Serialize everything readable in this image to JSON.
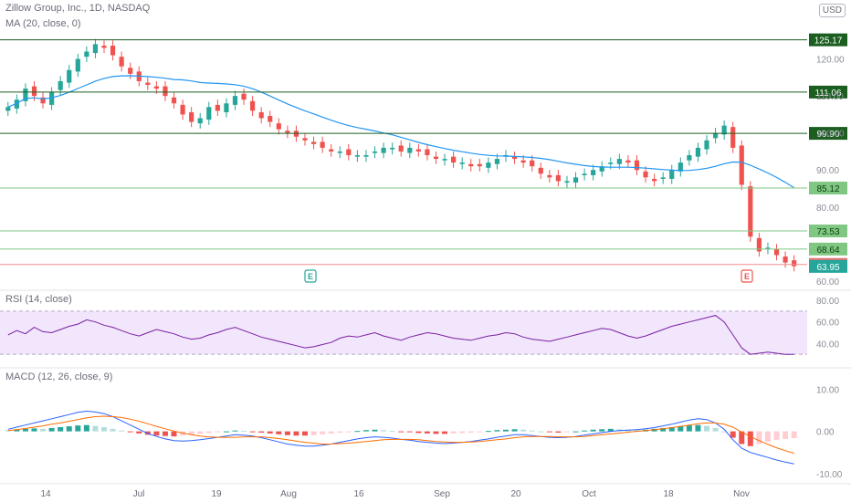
{
  "header": {
    "title": "Zillow Group, Inc., 1D, NASDAQ",
    "ma_label": "MA (20, close, 0)",
    "currency": "USD"
  },
  "panes": {
    "rsi_label": "RSI (14, close)",
    "macd_label": "MACD (12, 26, close, 9)"
  },
  "colors": {
    "up": "#26a69a",
    "down": "#ef5350",
    "ma": "#2196f3",
    "level_line": "#1b5e20",
    "rsi_line": "#7b1fa2",
    "rsi_band": "#f1e6fb",
    "macd_line": "#2962ff",
    "signal_line": "#ff6d00",
    "grid": "#ffffff"
  },
  "chart_data": [
    {
      "type": "candlestick",
      "title": "Zillow Group, Inc., 1D, NASDAQ",
      "y_axis": {
        "ticks": [
          120,
          110,
          100,
          90,
          80,
          60
        ],
        "tick_labels": [
          "120.00",
          "110.00",
          "100.00",
          "90.00",
          "80.00",
          "60.00"
        ]
      },
      "x_axis": {
        "ticks": [
          "14",
          "Jul",
          "19",
          "Aug",
          "16",
          "Sep",
          "20",
          "Oct",
          "18",
          "Nov"
        ]
      },
      "price_levels": [
        {
          "label": "125.17",
          "value": 125.17,
          "style": "dark"
        },
        {
          "label": "111.06",
          "value": 111.06,
          "style": "dark"
        },
        {
          "label": "99.90",
          "value": 99.9,
          "style": "dark"
        },
        {
          "label": "85.12",
          "value": 85.12,
          "style": "light"
        },
        {
          "label": "73.53",
          "value": 73.53,
          "style": "light"
        },
        {
          "label": "68.64",
          "value": 68.64,
          "style": "light"
        },
        {
          "label": "64.48",
          "value": 64.48,
          "style": "red"
        },
        {
          "label": "63.95",
          "value": 63.95,
          "style": "teal"
        }
      ],
      "events": [
        {
          "label": "E",
          "date": "Aug 5",
          "kind": "earnings-past"
        },
        {
          "label": "E",
          "date": "Nov 2",
          "kind": "earnings-miss"
        }
      ],
      "series": [
        {
          "name": "MA (20, close, 0)",
          "type": "line"
        }
      ],
      "approx_close_path": [
        107,
        109,
        112,
        110,
        108,
        111,
        114,
        117,
        120,
        122,
        124,
        123,
        121,
        118,
        116,
        114,
        113,
        112,
        110,
        108,
        105,
        103,
        104,
        107,
        106,
        108,
        110,
        109,
        106,
        104,
        103,
        101,
        100,
        99,
        98,
        97,
        96,
        95,
        95,
        94,
        94,
        94,
        95,
        96,
        96,
        95,
        96,
        95,
        94,
        93,
        93,
        92,
        92,
        91,
        91,
        92,
        93,
        94,
        93,
        92,
        91,
        89,
        88,
        87,
        87,
        88,
        89,
        90,
        91,
        92,
        93,
        92,
        90,
        88,
        87,
        88,
        90,
        92,
        94,
        96,
        98,
        100,
        102,
        96,
        86,
        72,
        68,
        69,
        67,
        65,
        64
      ]
    },
    {
      "type": "line",
      "title": "RSI (14, close)",
      "y_axis": {
        "ticks": [
          80,
          60,
          40
        ],
        "tick_labels": [
          "80.00",
          "60.00",
          "40.00"
        ]
      },
      "bands": [
        70,
        30
      ],
      "approx_values": [
        48,
        52,
        49,
        55,
        51,
        50,
        53,
        56,
        58,
        62,
        60,
        57,
        55,
        52,
        49,
        47,
        50,
        53,
        51,
        49,
        46,
        44,
        45,
        48,
        50,
        53,
        55,
        52,
        49,
        46,
        44,
        42,
        40,
        38,
        36,
        37,
        39,
        41,
        45,
        47,
        46,
        48,
        50,
        47,
        45,
        43,
        46,
        48,
        50,
        49,
        47,
        45,
        44,
        43,
        45,
        47,
        48,
        50,
        49,
        46,
        44,
        43,
        42,
        44,
        46,
        48,
        50,
        52,
        54,
        53,
        50,
        47,
        45,
        47,
        50,
        53,
        56,
        58,
        60,
        62,
        64,
        66,
        60,
        48,
        36,
        30,
        31,
        32,
        31,
        30,
        30
      ]
    },
    {
      "type": "bar+line",
      "title": "MACD (12, 26, close, 9)",
      "y_axis": {
        "ticks": [
          10,
          0,
          -10
        ],
        "tick_labels": [
          "10.00",
          "0.00",
          "-10.00"
        ]
      },
      "approx_histogram": [
        0.3,
        0.5,
        0.6,
        0.7,
        0.6,
        0.8,
        1,
        1.2,
        1.4,
        1.5,
        1.3,
        1.0,
        0.6,
        0.2,
        -0.2,
        -0.5,
        -0.8,
        -1.0,
        -1.1,
        -1.2,
        -1.0,
        -0.8,
        -0.6,
        -0.4,
        -0.2,
        0.0,
        0.2,
        0.1,
        -0.1,
        -0.3,
        -0.5,
        -0.7,
        -0.9,
        -1.0,
        -1.0,
        -0.9,
        -0.7,
        -0.5,
        -0.3,
        -0.1,
        0.1,
        0.3,
        0.4,
        0.3,
        0.1,
        -0.1,
        -0.2,
        -0.4,
        -0.5,
        -0.6,
        -0.6,
        -0.5,
        -0.4,
        -0.3,
        -0.1,
        0.1,
        0.3,
        0.4,
        0.5,
        0.4,
        0.2,
        0.0,
        -0.2,
        -0.3,
        -0.2,
        0.0,
        0.2,
        0.4,
        0.5,
        0.6,
        0.5,
        0.4,
        0.3,
        0.4,
        0.6,
        0.8,
        1.0,
        1.2,
        1.4,
        1.5,
        1.3,
        0.8,
        0.0,
        -1.5,
        -3.0,
        -3.5,
        -3.0,
        -2.5,
        -2.0,
        -1.8,
        -1.6
      ],
      "approx_macd": [
        0.5,
        1,
        1.5,
        2,
        2.5,
        3,
        3.5,
        4,
        4.5,
        4.8,
        4.6,
        4.2,
        3.5,
        2.5,
        1.5,
        0.5,
        -0.5,
        -1.2,
        -1.8,
        -2.2,
        -2.3,
        -2.2,
        -2.0,
        -1.7,
        -1.4,
        -1.1,
        -0.8,
        -0.9,
        -1.1,
        -1.5,
        -2.0,
        -2.5,
        -3.0,
        -3.3,
        -3.5,
        -3.5,
        -3.3,
        -3.0,
        -2.6,
        -2.2,
        -1.8,
        -1.5,
        -1.3,
        -1.4,
        -1.6,
        -1.9,
        -2.1,
        -2.4,
        -2.6,
        -2.8,
        -2.9,
        -2.8,
        -2.6,
        -2.4,
        -2.1,
        -1.8,
        -1.4,
        -1.1,
        -0.8,
        -0.8,
        -1.0,
        -1.2,
        -1.4,
        -1.5,
        -1.4,
        -1.2,
        -0.9,
        -0.6,
        -0.3,
        0.0,
        0.2,
        0.3,
        0.4,
        0.6,
        0.9,
        1.3,
        1.7,
        2.2,
        2.7,
        3.0,
        2.8,
        2.0,
        0.5,
        -2.0,
        -4.0,
        -5.0,
        -5.6,
        -6.2,
        -6.8,
        -7.3,
        -7.7
      ],
      "approx_signal": [
        0.2,
        0.4,
        0.7,
        1,
        1.3,
        1.7,
        2.0,
        2.4,
        2.8,
        3.2,
        3.5,
        3.6,
        3.5,
        3.3,
        2.9,
        2.4,
        1.8,
        1.2,
        0.6,
        0.1,
        -0.4,
        -0.8,
        -1.1,
        -1.3,
        -1.4,
        -1.4,
        -1.4,
        -1.3,
        -1.3,
        -1.3,
        -1.5,
        -1.7,
        -2.0,
        -2.3,
        -2.6,
        -2.8,
        -3.0,
        -3.0,
        -2.9,
        -2.8,
        -2.6,
        -2.4,
        -2.2,
        -2.0,
        -1.9,
        -1.9,
        -1.9,
        -2.0,
        -2.2,
        -2.4,
        -2.5,
        -2.6,
        -2.6,
        -2.5,
        -2.4,
        -2.2,
        -2.0,
        -1.8,
        -1.5,
        -1.3,
        -1.2,
        -1.2,
        -1.2,
        -1.3,
        -1.3,
        -1.3,
        -1.2,
        -1.0,
        -0.8,
        -0.6,
        -0.4,
        -0.2,
        0.0,
        0.2,
        0.4,
        0.6,
        0.9,
        1.2,
        1.5,
        1.8,
        2.0,
        2.0,
        1.7,
        1.0,
        -0.2,
        -1.2,
        -2.2,
        -3.1,
        -3.9,
        -4.6,
        -5.2
      ]
    }
  ]
}
